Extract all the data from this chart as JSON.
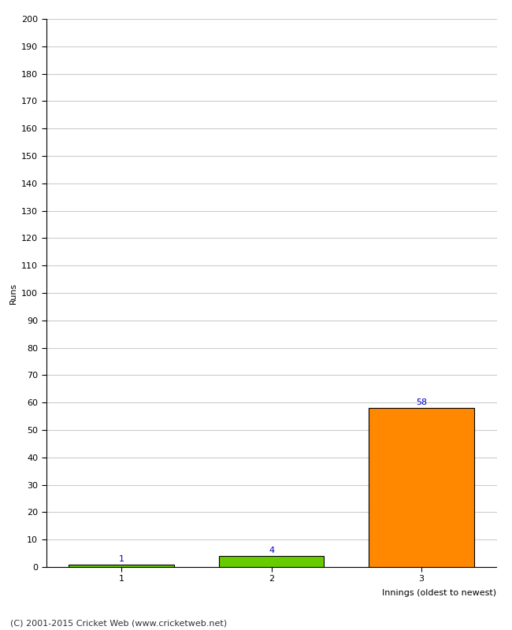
{
  "categories": [
    "1",
    "2",
    "3"
  ],
  "values": [
    1,
    4,
    58
  ],
  "bar_colors": [
    "#66cc00",
    "#66cc00",
    "#ff8800"
  ],
  "bar_edge_colors": [
    "#000000",
    "#000000",
    "#000000"
  ],
  "ylabel": "Runs",
  "xlabel": "Innings (oldest to newest)",
  "ylim": [
    0,
    200
  ],
  "yticks": [
    0,
    10,
    20,
    30,
    40,
    50,
    60,
    70,
    80,
    90,
    100,
    110,
    120,
    130,
    140,
    150,
    160,
    170,
    180,
    190,
    200
  ],
  "annotation_color": "#0000cc",
  "annotation_fontsize": 8,
  "xlabel_fontsize": 8,
  "ylabel_fontsize": 8,
  "tick_fontsize": 8,
  "footer_text": "(C) 2001-2015 Cricket Web (www.cricketweb.net)",
  "footer_fontsize": 8,
  "background_color": "#ffffff",
  "grid_color": "#cccccc",
  "bar_width": 0.7
}
